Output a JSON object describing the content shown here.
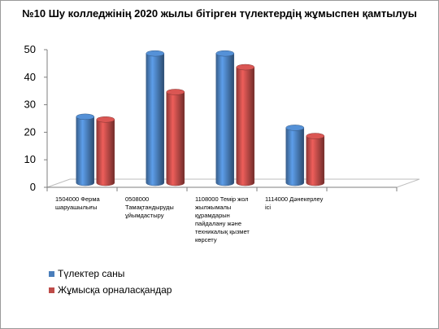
{
  "chart_data": {
    "type": "bar",
    "title": "№10 Шу колледжінің 2020 жылы бітірген түлектердің жұмыспен қамтылуы",
    "categories": [
      "1504000 Ферма шаруашылығы",
      "0508000 Тамақтандыруды ұйымдастыру",
      "1108000 Темір жол жылжымалы құрамдарын пайдалану және техникалық қызмет көрсету",
      "1114000 Дәнекерлеу ісі",
      ""
    ],
    "series": [
      {
        "name": "Түлектер саны",
        "color": "#4a7ebb",
        "values": [
          24,
          47,
          47,
          20,
          null
        ]
      },
      {
        "name": "Жұмысқа орналасқандар",
        "color": "#be4b48",
        "values": [
          23,
          33,
          42,
          17,
          null
        ]
      }
    ],
    "yticks": [
      0,
      10,
      20,
      30,
      40,
      50
    ],
    "ylim": [
      0,
      50
    ],
    "grid": false,
    "legend_position": "bottom-left"
  }
}
